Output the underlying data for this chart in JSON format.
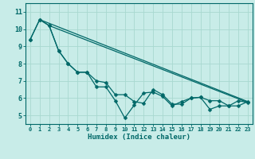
{
  "xlabel": "Humidex (Indice chaleur)",
  "background_color": "#c8ece8",
  "grid_color": "#a8d8d0",
  "line_color": "#006868",
  "xlim": [
    -0.5,
    23.5
  ],
  "ylim": [
    4.5,
    11.5
  ],
  "yticks": [
    5,
    6,
    7,
    8,
    9,
    10,
    11
  ],
  "xticks": [
    0,
    1,
    2,
    3,
    4,
    5,
    6,
    7,
    8,
    9,
    10,
    11,
    12,
    13,
    14,
    15,
    16,
    17,
    18,
    19,
    20,
    21,
    22,
    23
  ],
  "line1_x": [
    0,
    1,
    2,
    3,
    4,
    5,
    6,
    7,
    8,
    9,
    10,
    11,
    12,
    13,
    14,
    15,
    16,
    17,
    18,
    19,
    20,
    21,
    22,
    23
  ],
  "line1_y": [
    9.4,
    10.55,
    10.2,
    8.75,
    8.0,
    7.5,
    7.5,
    7.0,
    6.9,
    6.2,
    6.2,
    5.8,
    5.7,
    6.5,
    6.2,
    5.65,
    5.65,
    6.0,
    6.05,
    5.85,
    5.85,
    5.55,
    5.55,
    5.8
  ],
  "line2_x": [
    0,
    1,
    2,
    3,
    4,
    5,
    6,
    7,
    8,
    9,
    10,
    11,
    12,
    13,
    14,
    15,
    16,
    17,
    18,
    19,
    20,
    21,
    22,
    23
  ],
  "line2_y": [
    9.4,
    10.55,
    10.2,
    8.75,
    8.0,
    7.5,
    7.5,
    6.65,
    6.65,
    5.85,
    4.85,
    5.6,
    6.3,
    6.35,
    6.1,
    5.55,
    5.8,
    6.0,
    6.05,
    5.35,
    5.55,
    5.55,
    5.85,
    5.75
  ],
  "line3_x": [
    1,
    23
  ],
  "line3_y": [
    10.55,
    5.8
  ],
  "line4_x": [
    2,
    23
  ],
  "line4_y": [
    10.2,
    5.75
  ],
  "markersize": 2.5,
  "linewidth": 0.9,
  "xlabel_fontsize": 6.5,
  "xtick_fontsize": 5.0,
  "ytick_fontsize": 6.0
}
